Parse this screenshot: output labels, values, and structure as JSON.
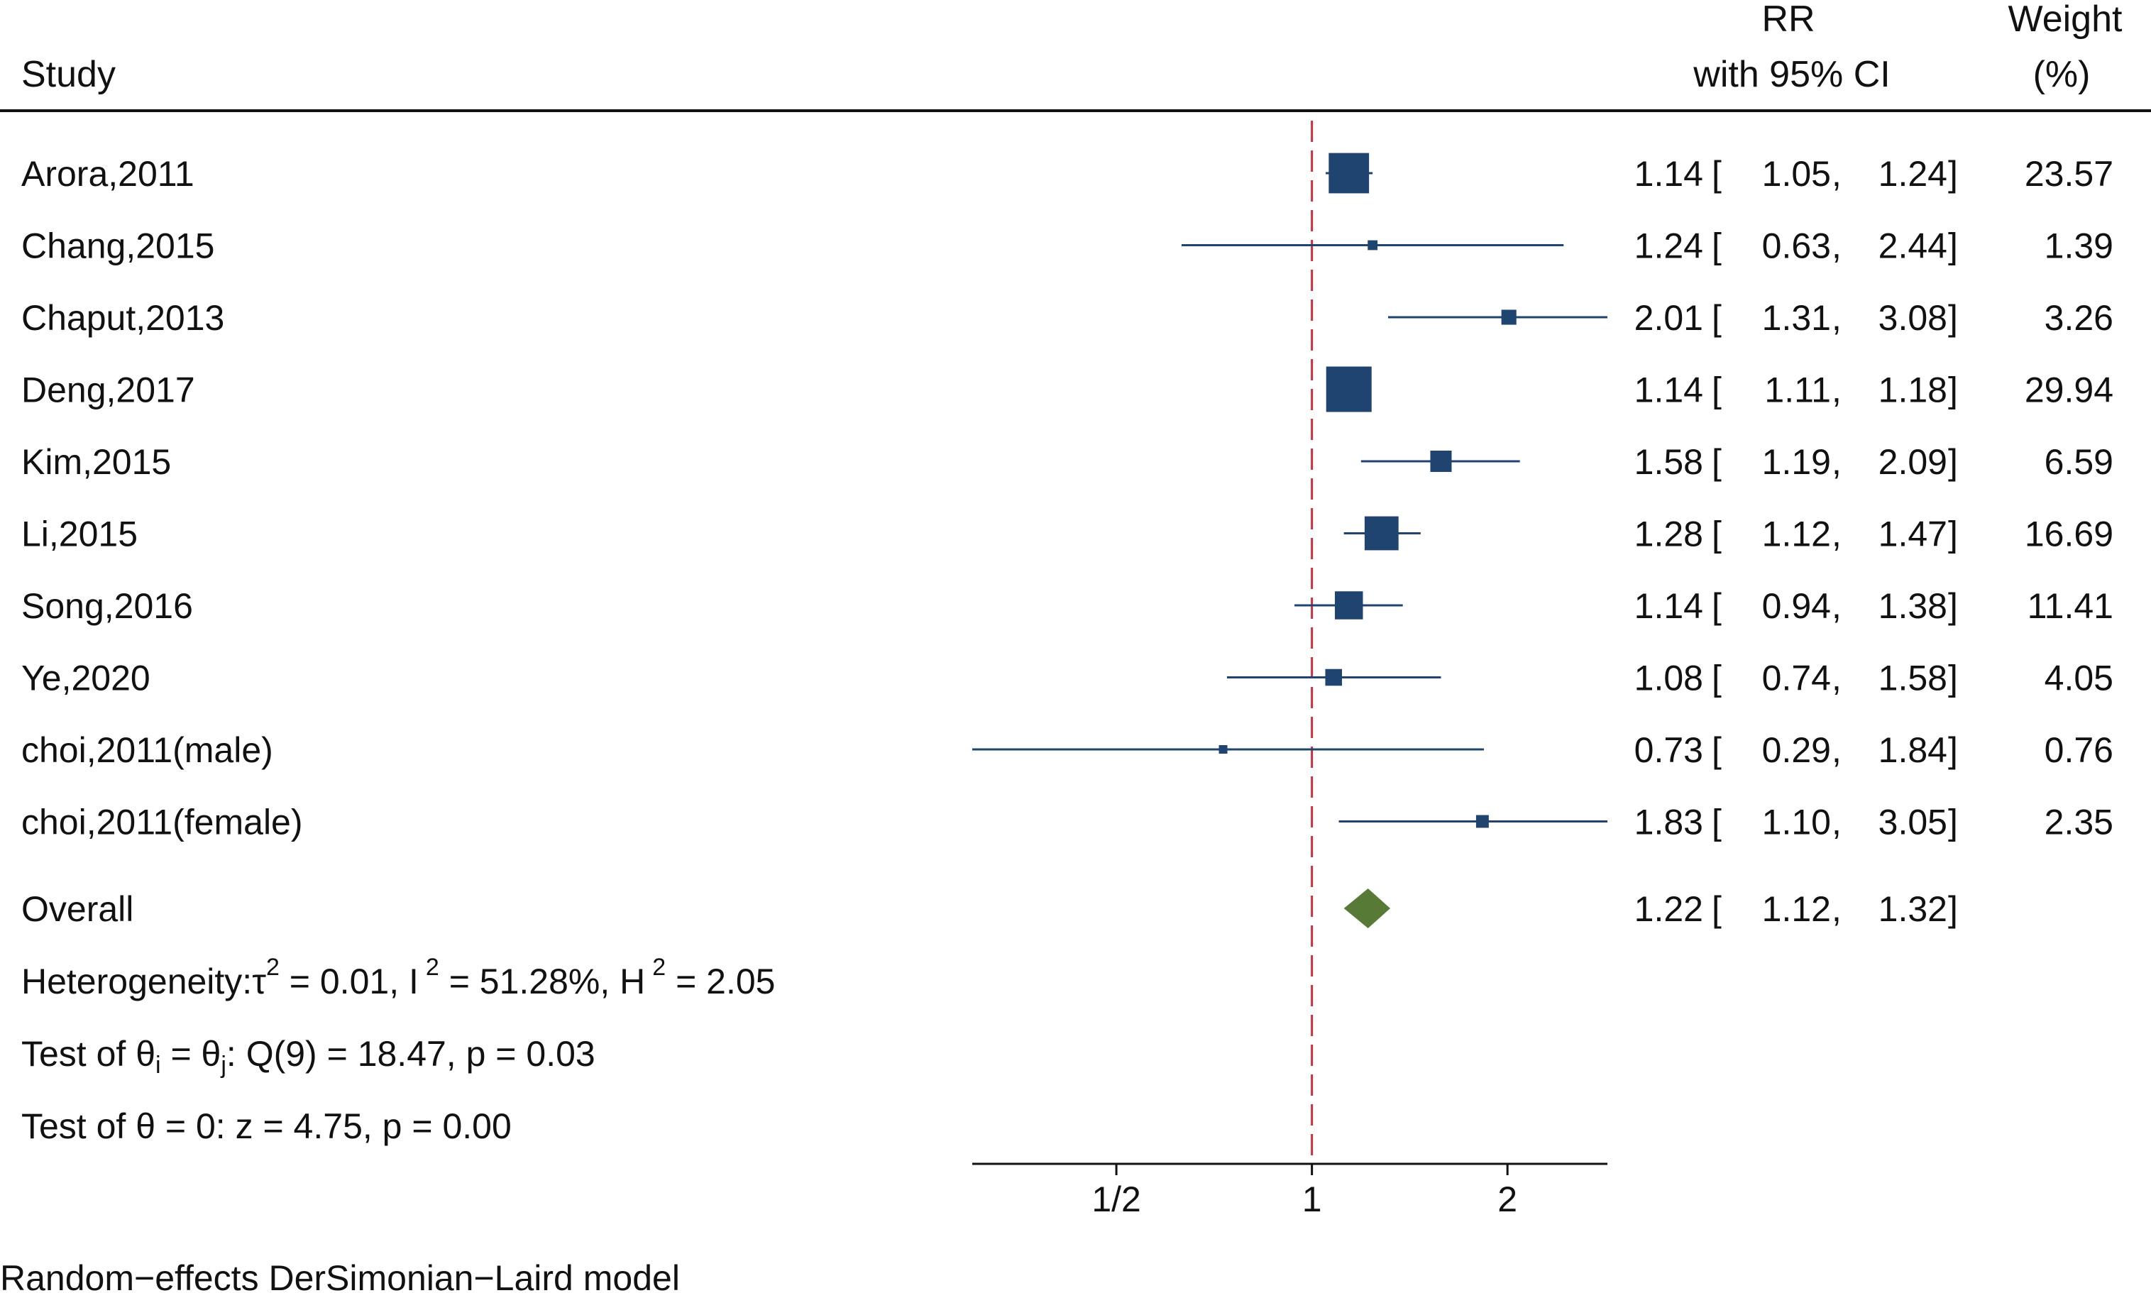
{
  "chart_data": {
    "type": "forest",
    "effect_measure": "RR",
    "headers": {
      "study": "Study",
      "effect_line1": "RR",
      "effect_line2": "with 95% CI",
      "weight_line1": "Weight",
      "weight_line2": "(%)"
    },
    "x_scale": "log",
    "xlim": [
      0.3,
      2.85
    ],
    "null_line": 1,
    "x_ticks": [
      {
        "value": 0.5,
        "label": "1/2"
      },
      {
        "value": 1,
        "label": "1"
      },
      {
        "value": 2,
        "label": "2"
      }
    ],
    "studies": [
      {
        "name": "Arora,2011",
        "rr": 1.14,
        "lo": 1.05,
        "hi": 1.24,
        "rr_text": "1.14",
        "lo_text": "1.05",
        "hi_text": "1.24",
        "weight": 23.57,
        "weight_text": "23.57"
      },
      {
        "name": "Chang,2015",
        "rr": 1.24,
        "lo": 0.63,
        "hi": 2.44,
        "rr_text": "1.24",
        "lo_text": "0.63",
        "hi_text": "2.44",
        "weight": 1.39,
        "weight_text": "1.39"
      },
      {
        "name": "Chaput,2013",
        "rr": 2.01,
        "lo": 1.31,
        "hi": 3.08,
        "rr_text": "2.01",
        "lo_text": "1.31",
        "hi_text": "3.08",
        "weight": 3.26,
        "weight_text": "3.26"
      },
      {
        "name": "Deng,2017",
        "rr": 1.14,
        "lo": 1.11,
        "hi": 1.18,
        "rr_text": "1.14",
        "lo_text": "1.11",
        "hi_text": "1.18",
        "weight": 29.94,
        "weight_text": "29.94"
      },
      {
        "name": "Kim,2015",
        "rr": 1.58,
        "lo": 1.19,
        "hi": 2.09,
        "rr_text": "1.58",
        "lo_text": "1.19",
        "hi_text": "2.09",
        "weight": 6.59,
        "weight_text": "6.59"
      },
      {
        "name": "Li,2015",
        "rr": 1.28,
        "lo": 1.12,
        "hi": 1.47,
        "rr_text": "1.28",
        "lo_text": "1.12",
        "hi_text": "1.47",
        "weight": 16.69,
        "weight_text": "16.69"
      },
      {
        "name": "Song,2016",
        "rr": 1.14,
        "lo": 0.94,
        "hi": 1.38,
        "rr_text": "1.14",
        "lo_text": "0.94",
        "hi_text": "1.38",
        "weight": 11.41,
        "weight_text": "11.41"
      },
      {
        "name": "Ye,2020",
        "rr": 1.08,
        "lo": 0.74,
        "hi": 1.58,
        "rr_text": "1.08",
        "lo_text": "0.74",
        "hi_text": "1.58",
        "weight": 4.05,
        "weight_text": "4.05"
      },
      {
        "name": "choi,2011(male)",
        "rr": 0.73,
        "lo": 0.29,
        "hi": 1.84,
        "rr_text": "0.73",
        "lo_text": "0.29",
        "hi_text": "1.84",
        "weight": 0.76,
        "weight_text": "0.76"
      },
      {
        "name": "choi,2011(female)",
        "rr": 1.83,
        "lo": 1.1,
        "hi": 3.05,
        "rr_text": "1.83",
        "lo_text": "1.10",
        "hi_text": "3.05",
        "weight": 2.35,
        "weight_text": "2.35"
      }
    ],
    "overall": {
      "name": "Overall",
      "rr": 1.22,
      "lo": 1.12,
      "hi": 1.32,
      "rr_text": "1.22",
      "lo_text": "1.12",
      "hi_text": "1.32"
    },
    "stats": {
      "heterogeneity": {
        "prefix": "Heterogeneity:",
        "tau": "τ",
        "tau2_value": " = 0.01, I",
        "i2_value": " = 51.28%, H",
        "h2_value": " = 2.05",
        "sup": "2"
      },
      "test_equal": {
        "prefix": "Test of ",
        "theta": "θ",
        "sub_i": "i",
        "eq": " = ",
        "sub_j": "j",
        "rest": ": Q(9) = 18.47, p = 0.03"
      },
      "test_zero": {
        "prefix": "Test of ",
        "theta": "θ",
        "rest": " = 0: z = 4.75, p = 0.00"
      }
    },
    "footnote": "Random−effects DerSimonian−Laird model",
    "colors": {
      "marker": "#1f4470",
      "ci_line": "#1f4470",
      "diamond": "#587a37",
      "null_line": "#c8313e",
      "axis": "#111111"
    }
  }
}
